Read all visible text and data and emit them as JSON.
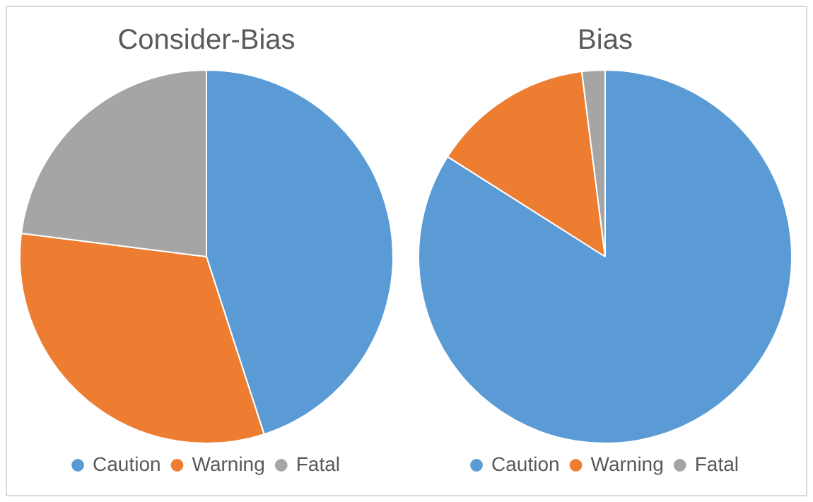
{
  "chart_data": [
    {
      "type": "pie",
      "title": "Consider-Bias",
      "categories": [
        "Caution",
        "Warning",
        "Fatal"
      ],
      "values": [
        45,
        32,
        23
      ],
      "colors": [
        "#5b9bd5",
        "#ed7d31",
        "#a5a5a5"
      ],
      "legend": "bottom"
    },
    {
      "type": "pie",
      "title": "Bias",
      "categories": [
        "Caution",
        "Warning",
        "Fatal"
      ],
      "values": [
        84,
        14,
        2
      ],
      "colors": [
        "#5b9bd5",
        "#ed7d31",
        "#a5a5a5"
      ],
      "legend": "bottom"
    }
  ]
}
